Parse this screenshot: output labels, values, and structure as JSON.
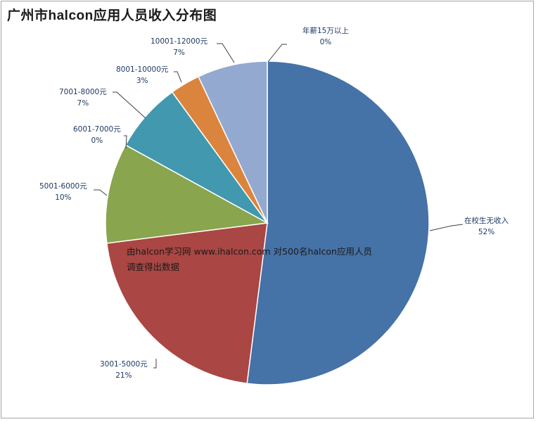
{
  "chart_data": {
    "type": "pie",
    "title": "广州市halcon应用人员收入分布图",
    "start_angle_deg": 0,
    "direction": "clockwise",
    "categories": [
      "在校生无收入",
      "3001-5000元",
      "5001-6000元",
      "6001-7000元",
      "7001-8000元",
      "8001-10000元",
      "10001-12000元",
      "年薪15万以上"
    ],
    "values": [
      52,
      21,
      10,
      0,
      7,
      3,
      7,
      0
    ],
    "value_labels": [
      "52%",
      "21%",
      "10%",
      "0%",
      "7%",
      "3%",
      "7%",
      "0%"
    ],
    "colors": [
      "#4572a7",
      "#aa4643",
      "#89a54e",
      "#71588f",
      "#4198af",
      "#db843d",
      "#93a9cf",
      "#4572a7"
    ],
    "legend": "none",
    "annotation": [
      "由halcon学习网   www.ihalcon.com 对500名halcon应用人员",
      "调查得出数据"
    ]
  },
  "labels": [
    {
      "name": "在校生无收入",
      "pct": "52%"
    },
    {
      "name": "3001-5000元",
      "pct": "21%"
    },
    {
      "name": "5001-6000元",
      "pct": "10%"
    },
    {
      "name": "6001-7000元",
      "pct": "0%"
    },
    {
      "name": "7001-8000元",
      "pct": "7%"
    },
    {
      "name": "8001-10000元",
      "pct": "3%"
    },
    {
      "name": "10001-12000元",
      "pct": "7%"
    },
    {
      "name": "年薪15万以上",
      "pct": "0%"
    }
  ]
}
